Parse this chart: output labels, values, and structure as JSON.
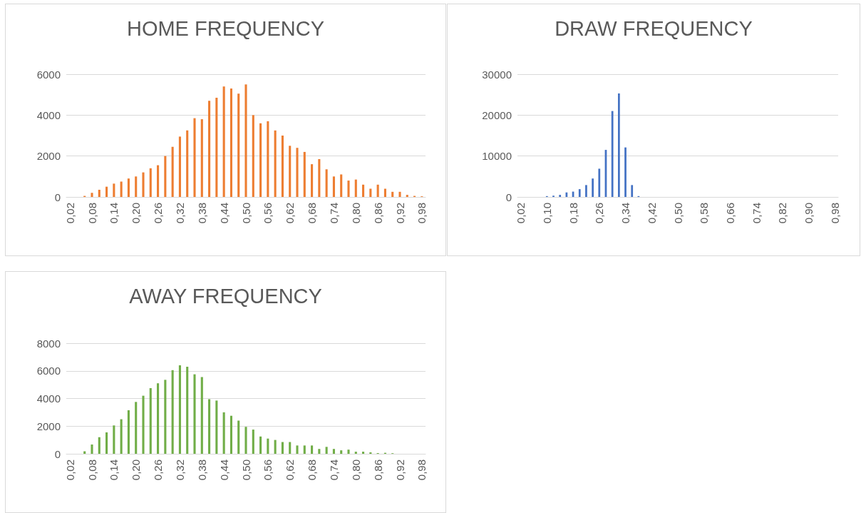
{
  "chart_data": [
    {
      "type": "bar",
      "title": "HOME FREQUENCY",
      "categories": [
        "0,02",
        null,
        null,
        "0,08",
        null,
        null,
        "0,14",
        null,
        null,
        "0,20",
        null,
        null,
        "0,26",
        null,
        null,
        "0,32",
        null,
        null,
        "0,38",
        null,
        null,
        "0,44",
        null,
        null,
        "0,50",
        null,
        null,
        "0,56",
        null,
        null,
        "0,62",
        null,
        null,
        "0,68",
        null,
        null,
        "0,74",
        null,
        null,
        "0,80",
        null,
        null,
        "0,86",
        null,
        null,
        "0,92",
        null,
        null,
        "0,98"
      ],
      "series": [
        {
          "color": "#ed7d31",
          "values": [
            0,
            0,
            50,
            200,
            350,
            500,
            650,
            750,
            900,
            1000,
            1200,
            1400,
            1550,
            2000,
            2450,
            2950,
            3250,
            3850,
            3800,
            4700,
            4850,
            5400,
            5300,
            5050,
            5500,
            4000,
            3600,
            3700,
            3250,
            3000,
            2500,
            2400,
            2200,
            1600,
            1850,
            1350,
            1000,
            1100,
            800,
            850,
            600,
            400,
            600,
            400,
            250,
            250,
            100,
            50,
            30
          ]
        }
      ],
      "ylim": [
        0,
        6000
      ],
      "yticks": [
        0,
        2000,
        4000,
        6000
      ],
      "grid": "y"
    },
    {
      "type": "bar",
      "title": "DRAW FREQUENCY",
      "categories": [
        "0,02",
        null,
        null,
        null,
        "0,10",
        null,
        null,
        null,
        "0,18",
        null,
        null,
        null,
        "0,26",
        null,
        null,
        null,
        "0,34",
        null,
        null,
        null,
        "0,42",
        null,
        null,
        null,
        "0,50",
        null,
        null,
        null,
        "0,58",
        null,
        null,
        null,
        "0,66",
        null,
        null,
        null,
        "0,74",
        null,
        null,
        null,
        "0,82",
        null,
        null,
        null,
        "0,90",
        null,
        null,
        null,
        "0,98"
      ],
      "series": [
        {
          "color": "#4472c4",
          "values": [
            0,
            0,
            0,
            0,
            200,
            300,
            500,
            1100,
            1300,
            1900,
            2900,
            4500,
            6900,
            11500,
            21000,
            25300,
            12100,
            2900,
            200,
            0,
            0,
            0,
            0,
            0,
            0,
            0,
            0,
            0,
            0,
            0,
            0,
            0,
            0,
            0,
            0,
            0,
            0,
            0,
            0,
            0,
            0,
            0,
            0,
            0,
            0,
            0,
            0,
            0,
            0
          ]
        }
      ],
      "ylim": [
        0,
        30000
      ],
      "yticks": [
        0,
        10000,
        20000,
        30000
      ],
      "grid": "y"
    },
    {
      "type": "bar",
      "title": "AWAY FREQUENCY",
      "categories": [
        "0,02",
        null,
        null,
        "0,08",
        null,
        null,
        "0,14",
        null,
        null,
        "0,20",
        null,
        null,
        "0,26",
        null,
        null,
        "0,32",
        null,
        null,
        "0,38",
        null,
        null,
        "0,44",
        null,
        null,
        "0,50",
        null,
        null,
        "0,56",
        null,
        null,
        "0,62",
        null,
        null,
        "0,68",
        null,
        null,
        "0,74",
        null,
        null,
        "0,80",
        null,
        null,
        "0,86",
        null,
        null,
        "0,92",
        null,
        null,
        "0,98"
      ],
      "series": [
        {
          "color": "#70ad47",
          "values": [
            0,
            0,
            180,
            670,
            1200,
            1550,
            2050,
            2500,
            3150,
            3750,
            4200,
            4750,
            5100,
            5350,
            6050,
            6400,
            6300,
            5750,
            5550,
            3950,
            3850,
            3000,
            2750,
            2400,
            1950,
            1750,
            1250,
            1100,
            1000,
            850,
            850,
            600,
            600,
            600,
            350,
            500,
            350,
            250,
            300,
            150,
            150,
            100,
            50,
            70,
            40,
            0,
            0,
            0,
            0
          ]
        }
      ],
      "ylim": [
        0,
        8000
      ],
      "yticks": [
        0,
        2000,
        4000,
        6000,
        8000
      ],
      "grid": "y"
    }
  ]
}
